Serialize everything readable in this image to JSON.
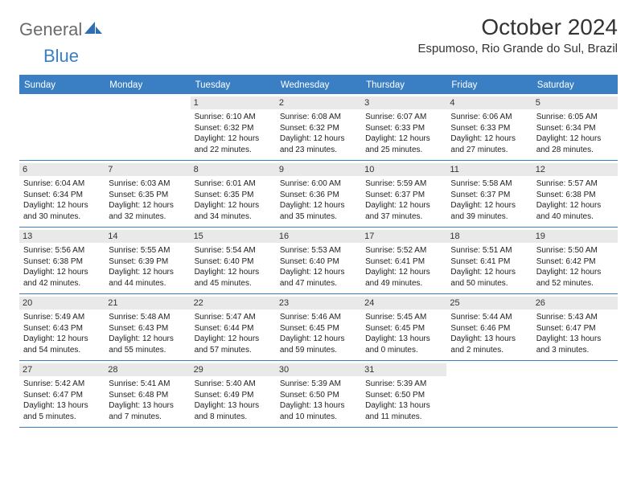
{
  "logo": {
    "text_general": "General",
    "text_blue": "Blue"
  },
  "header": {
    "month_title": "October 2024",
    "location": "Espumoso, Rio Grande do Sul, Brazil"
  },
  "colors": {
    "brand_blue": "#3a7fc4",
    "gray_text": "#6b6b6b",
    "daynum_bg": "#e9e9e9",
    "text": "#222222",
    "white": "#ffffff"
  },
  "day_names": [
    "Sunday",
    "Monday",
    "Tuesday",
    "Wednesday",
    "Thursday",
    "Friday",
    "Saturday"
  ],
  "weeks": [
    [
      {
        "day": "",
        "sunrise": "",
        "sunset": "",
        "daylight": ""
      },
      {
        "day": "",
        "sunrise": "",
        "sunset": "",
        "daylight": ""
      },
      {
        "day": "1",
        "sunrise": "Sunrise: 6:10 AM",
        "sunset": "Sunset: 6:32 PM",
        "daylight": "Daylight: 12 hours and 22 minutes."
      },
      {
        "day": "2",
        "sunrise": "Sunrise: 6:08 AM",
        "sunset": "Sunset: 6:32 PM",
        "daylight": "Daylight: 12 hours and 23 minutes."
      },
      {
        "day": "3",
        "sunrise": "Sunrise: 6:07 AM",
        "sunset": "Sunset: 6:33 PM",
        "daylight": "Daylight: 12 hours and 25 minutes."
      },
      {
        "day": "4",
        "sunrise": "Sunrise: 6:06 AM",
        "sunset": "Sunset: 6:33 PM",
        "daylight": "Daylight: 12 hours and 27 minutes."
      },
      {
        "day": "5",
        "sunrise": "Sunrise: 6:05 AM",
        "sunset": "Sunset: 6:34 PM",
        "daylight": "Daylight: 12 hours and 28 minutes."
      }
    ],
    [
      {
        "day": "6",
        "sunrise": "Sunrise: 6:04 AM",
        "sunset": "Sunset: 6:34 PM",
        "daylight": "Daylight: 12 hours and 30 minutes."
      },
      {
        "day": "7",
        "sunrise": "Sunrise: 6:03 AM",
        "sunset": "Sunset: 6:35 PM",
        "daylight": "Daylight: 12 hours and 32 minutes."
      },
      {
        "day": "8",
        "sunrise": "Sunrise: 6:01 AM",
        "sunset": "Sunset: 6:35 PM",
        "daylight": "Daylight: 12 hours and 34 minutes."
      },
      {
        "day": "9",
        "sunrise": "Sunrise: 6:00 AM",
        "sunset": "Sunset: 6:36 PM",
        "daylight": "Daylight: 12 hours and 35 minutes."
      },
      {
        "day": "10",
        "sunrise": "Sunrise: 5:59 AM",
        "sunset": "Sunset: 6:37 PM",
        "daylight": "Daylight: 12 hours and 37 minutes."
      },
      {
        "day": "11",
        "sunrise": "Sunrise: 5:58 AM",
        "sunset": "Sunset: 6:37 PM",
        "daylight": "Daylight: 12 hours and 39 minutes."
      },
      {
        "day": "12",
        "sunrise": "Sunrise: 5:57 AM",
        "sunset": "Sunset: 6:38 PM",
        "daylight": "Daylight: 12 hours and 40 minutes."
      }
    ],
    [
      {
        "day": "13",
        "sunrise": "Sunrise: 5:56 AM",
        "sunset": "Sunset: 6:38 PM",
        "daylight": "Daylight: 12 hours and 42 minutes."
      },
      {
        "day": "14",
        "sunrise": "Sunrise: 5:55 AM",
        "sunset": "Sunset: 6:39 PM",
        "daylight": "Daylight: 12 hours and 44 minutes."
      },
      {
        "day": "15",
        "sunrise": "Sunrise: 5:54 AM",
        "sunset": "Sunset: 6:40 PM",
        "daylight": "Daylight: 12 hours and 45 minutes."
      },
      {
        "day": "16",
        "sunrise": "Sunrise: 5:53 AM",
        "sunset": "Sunset: 6:40 PM",
        "daylight": "Daylight: 12 hours and 47 minutes."
      },
      {
        "day": "17",
        "sunrise": "Sunrise: 5:52 AM",
        "sunset": "Sunset: 6:41 PM",
        "daylight": "Daylight: 12 hours and 49 minutes."
      },
      {
        "day": "18",
        "sunrise": "Sunrise: 5:51 AM",
        "sunset": "Sunset: 6:41 PM",
        "daylight": "Daylight: 12 hours and 50 minutes."
      },
      {
        "day": "19",
        "sunrise": "Sunrise: 5:50 AM",
        "sunset": "Sunset: 6:42 PM",
        "daylight": "Daylight: 12 hours and 52 minutes."
      }
    ],
    [
      {
        "day": "20",
        "sunrise": "Sunrise: 5:49 AM",
        "sunset": "Sunset: 6:43 PM",
        "daylight": "Daylight: 12 hours and 54 minutes."
      },
      {
        "day": "21",
        "sunrise": "Sunrise: 5:48 AM",
        "sunset": "Sunset: 6:43 PM",
        "daylight": "Daylight: 12 hours and 55 minutes."
      },
      {
        "day": "22",
        "sunrise": "Sunrise: 5:47 AM",
        "sunset": "Sunset: 6:44 PM",
        "daylight": "Daylight: 12 hours and 57 minutes."
      },
      {
        "day": "23",
        "sunrise": "Sunrise: 5:46 AM",
        "sunset": "Sunset: 6:45 PM",
        "daylight": "Daylight: 12 hours and 59 minutes."
      },
      {
        "day": "24",
        "sunrise": "Sunrise: 5:45 AM",
        "sunset": "Sunset: 6:45 PM",
        "daylight": "Daylight: 13 hours and 0 minutes."
      },
      {
        "day": "25",
        "sunrise": "Sunrise: 5:44 AM",
        "sunset": "Sunset: 6:46 PM",
        "daylight": "Daylight: 13 hours and 2 minutes."
      },
      {
        "day": "26",
        "sunrise": "Sunrise: 5:43 AM",
        "sunset": "Sunset: 6:47 PM",
        "daylight": "Daylight: 13 hours and 3 minutes."
      }
    ],
    [
      {
        "day": "27",
        "sunrise": "Sunrise: 5:42 AM",
        "sunset": "Sunset: 6:47 PM",
        "daylight": "Daylight: 13 hours and 5 minutes."
      },
      {
        "day": "28",
        "sunrise": "Sunrise: 5:41 AM",
        "sunset": "Sunset: 6:48 PM",
        "daylight": "Daylight: 13 hours and 7 minutes."
      },
      {
        "day": "29",
        "sunrise": "Sunrise: 5:40 AM",
        "sunset": "Sunset: 6:49 PM",
        "daylight": "Daylight: 13 hours and 8 minutes."
      },
      {
        "day": "30",
        "sunrise": "Sunrise: 5:39 AM",
        "sunset": "Sunset: 6:50 PM",
        "daylight": "Daylight: 13 hours and 10 minutes."
      },
      {
        "day": "31",
        "sunrise": "Sunrise: 5:39 AM",
        "sunset": "Sunset: 6:50 PM",
        "daylight": "Daylight: 13 hours and 11 minutes."
      },
      {
        "day": "",
        "sunrise": "",
        "sunset": "",
        "daylight": ""
      },
      {
        "day": "",
        "sunrise": "",
        "sunset": "",
        "daylight": ""
      }
    ]
  ]
}
